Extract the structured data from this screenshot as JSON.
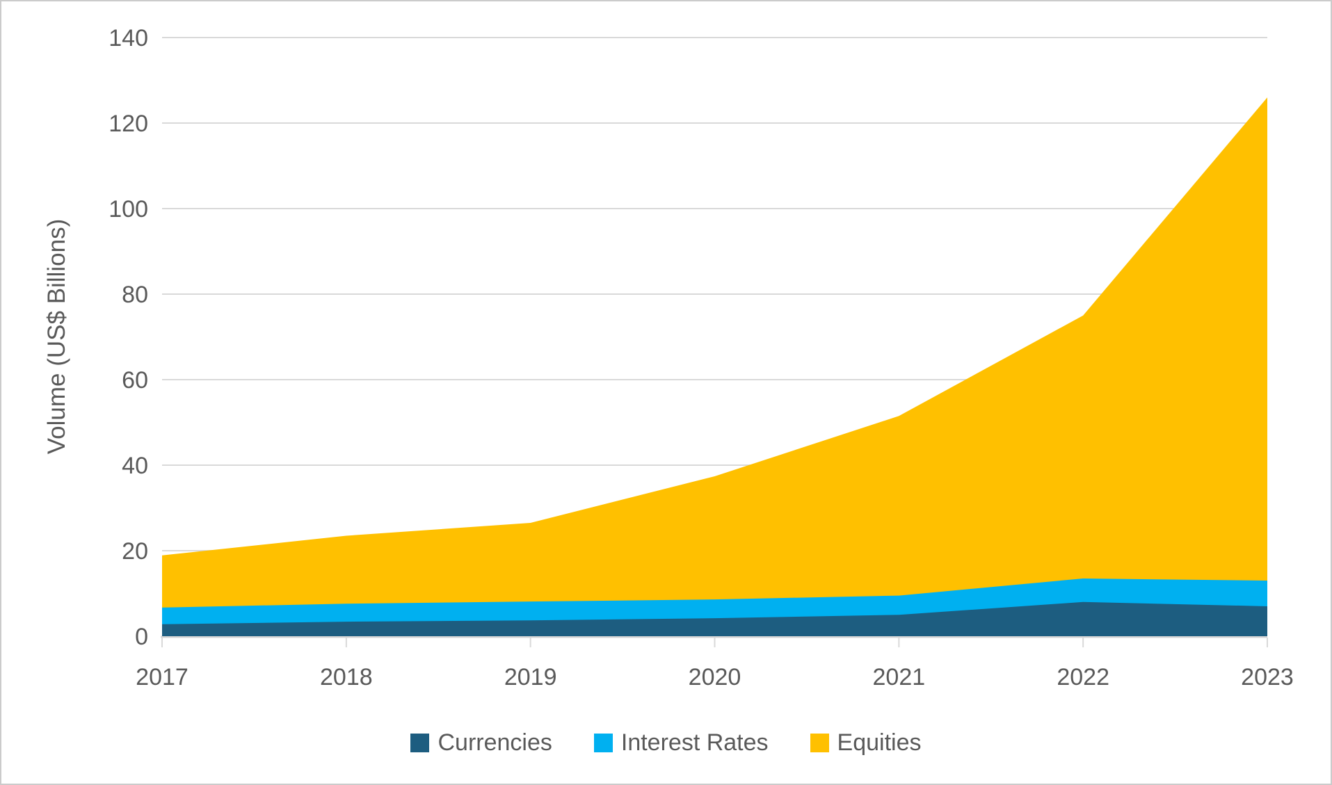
{
  "chart_data": {
    "type": "area",
    "stacked": true,
    "title": "",
    "ylabel": "Volume (US$ Billions)",
    "xlabel": "",
    "ylim": [
      0,
      140
    ],
    "yticks": [
      0,
      20,
      40,
      60,
      80,
      100,
      120,
      140
    ],
    "grid": true,
    "legend_position": "bottom",
    "categories": [
      "2017",
      "2018",
      "2019",
      "2020",
      "2021",
      "2022",
      "2023"
    ],
    "series": [
      {
        "name": "Currencies",
        "color": "#1D5D80",
        "values": [
          2.8,
          3.4,
          3.7,
          4.2,
          5.0,
          8.0,
          7.0
        ]
      },
      {
        "name": "Interest Rates",
        "color": "#00B0F0",
        "values": [
          3.9,
          4.2,
          4.4,
          4.4,
          4.5,
          5.5,
          6.0
        ]
      },
      {
        "name": "Equities",
        "color": "#FFC000",
        "values": [
          12.2,
          15.9,
          18.4,
          28.8,
          42.0,
          61.5,
          113.0
        ]
      }
    ],
    "stacked_totals": [
      18.9,
      23.5,
      26.5,
      37.4,
      51.5,
      75.0,
      126.0
    ],
    "colors": {
      "text": "#595959",
      "gridline": "#D9D9D9",
      "axis_line": "#D6D6D6"
    }
  }
}
